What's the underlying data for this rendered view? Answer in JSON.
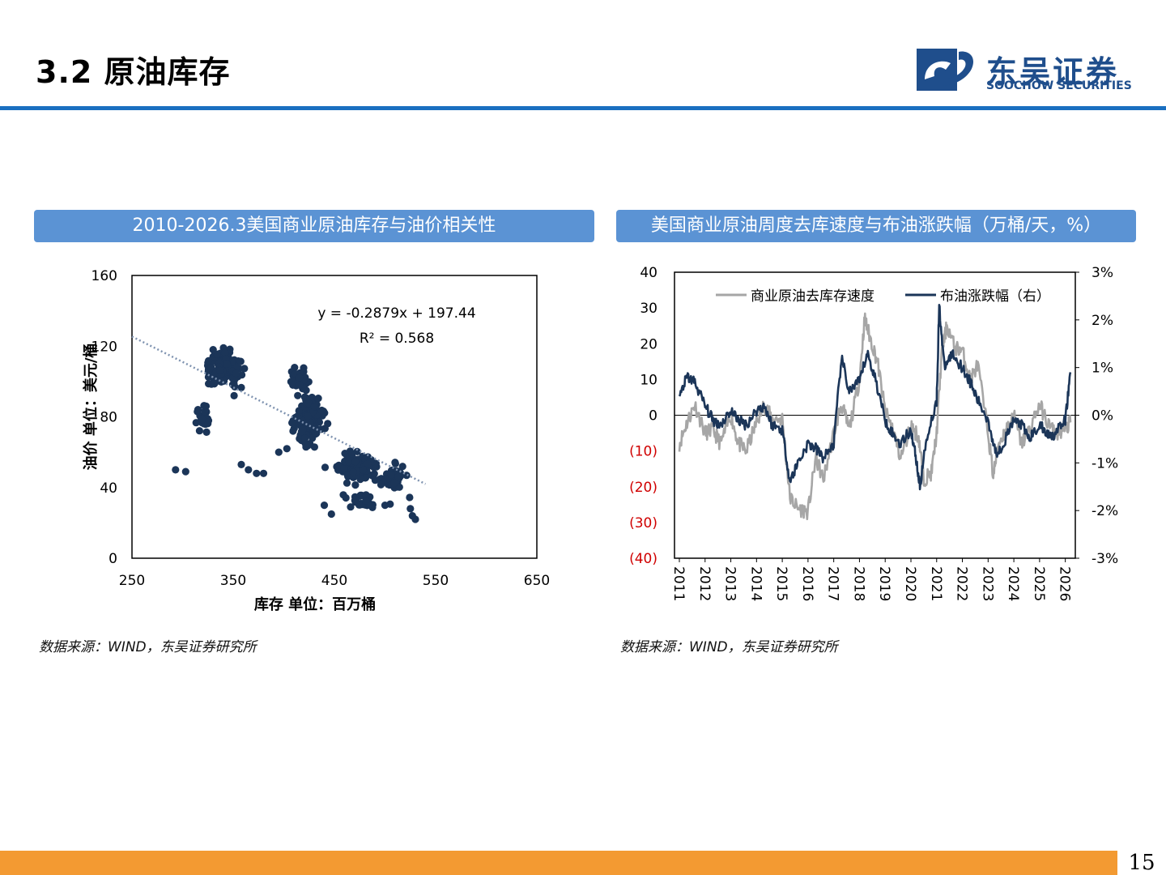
{
  "header": {
    "title": "3.2 原油库存"
  },
  "logo": {
    "cn": "东吴证券",
    "en": "SOOCHOW SECURITIES"
  },
  "left_panel": {
    "title": "2010-2026.3美国商业原油库存与油价相关性",
    "source": "数据来源：WIND，东吴证券研究所"
  },
  "right_panel": {
    "title": "美国商业原油周度去库速度与布油涨跌幅（万桶/天，%）",
    "source": "数据来源：WIND，东吴证券研究所"
  },
  "footer": {
    "page_number": "15"
  },
  "colors": {
    "accent": "#1a6fc0",
    "panel_title_bg": "#5b93d4",
    "footer": "#f39a32",
    "navy": "#1b3558",
    "gray": "#a6a6a6",
    "negative_label": "#d00000"
  },
  "chart_data": [
    {
      "type": "scatter",
      "title": "",
      "xlabel": "库存 单位：百万桶",
      "ylabel": "油价 单位：美元/桶",
      "xlim": [
        250,
        650
      ],
      "ylim": [
        0,
        160
      ],
      "x_ticks": [
        "250",
        "350",
        "450",
        "550",
        "650"
      ],
      "y_ticks": [
        "0",
        "40",
        "80",
        "120",
        "160"
      ],
      "equation": "y = -0.2879x + 197.44",
      "r_squared": "R² = 0.568",
      "trendline": {
        "slope": -0.2879,
        "intercept": 197.44
      },
      "clusters": [
        {
          "cx": 340,
          "cy": 108,
          "sx": 16,
          "sy": 9,
          "n": 130
        },
        {
          "cx": 320,
          "cy": 78,
          "sx": 10,
          "sy": 7,
          "n": 25
        },
        {
          "cx": 425,
          "cy": 78,
          "sx": 13,
          "sy": 12,
          "n": 190
        },
        {
          "cx": 415,
          "cy": 100,
          "sx": 8,
          "sy": 8,
          "n": 40
        },
        {
          "cx": 470,
          "cy": 52,
          "sx": 20,
          "sy": 8,
          "n": 130
        },
        {
          "cx": 510,
          "cy": 45,
          "sx": 12,
          "sy": 8,
          "n": 50
        },
        {
          "cx": 480,
          "cy": 33,
          "sx": 22,
          "sy": 6,
          "n": 25
        }
      ],
      "points": [
        [
          380,
          48
        ],
        [
          373,
          48
        ],
        [
          365,
          50
        ],
        [
          358,
          53
        ],
        [
          395,
          60
        ],
        [
          403,
          62
        ],
        [
          530,
          22
        ],
        [
          527,
          24
        ],
        [
          466,
          29
        ],
        [
          447,
          25
        ],
        [
          440,
          30
        ],
        [
          500,
          30
        ],
        [
          525,
          28
        ],
        [
          293,
          50
        ],
        [
          303,
          49
        ]
      ]
    },
    {
      "type": "line",
      "title": "",
      "x_ticks": [
        "2011",
        "2012",
        "2013",
        "2014",
        "2015",
        "2016",
        "2017",
        "2018",
        "2019",
        "2020",
        "2021",
        "2022",
        "2023",
        "2024",
        "2025",
        "2026"
      ],
      "xlim": [
        2011.0,
        2026.2
      ],
      "left_axis": {
        "ylim": [
          -40,
          40
        ],
        "ticks": [
          "40",
          "30",
          "20",
          "10",
          "0",
          "(10)",
          "(20)",
          "(30)",
          "(40)"
        ]
      },
      "right_axis": {
        "ylim": [
          -3,
          3
        ],
        "ticks": [
          "3%",
          "2%",
          "1%",
          "0%",
          "-1%",
          "-2%",
          "-3%"
        ]
      },
      "series": [
        {
          "name": "商业原油去库存速度",
          "axis": "left",
          "x": [
            2011.0,
            2011.3,
            2011.6,
            2012.0,
            2012.3,
            2012.6,
            2013.0,
            2013.3,
            2013.6,
            2014.0,
            2014.3,
            2014.6,
            2015.0,
            2015.3,
            2015.6,
            2016.0,
            2016.3,
            2016.6,
            2017.0,
            2017.3,
            2017.6,
            2018.0,
            2018.2,
            2018.4,
            2018.7,
            2019.0,
            2019.3,
            2019.6,
            2020.0,
            2020.3,
            2020.5,
            2020.8,
            2021.0,
            2021.2,
            2021.4,
            2021.7,
            2022.0,
            2022.3,
            2022.6,
            2023.0,
            2023.2,
            2023.4,
            2023.7,
            2024.0,
            2024.3,
            2024.6,
            2025.0,
            2025.3,
            2025.6,
            2026.0,
            2026.2
          ],
          "y": [
            -8,
            -2,
            3,
            -5,
            -4,
            -8,
            0,
            -8,
            -10,
            -2,
            3,
            -1,
            -1,
            -23,
            -26,
            -27,
            -12,
            -18,
            -5,
            3,
            -4,
            10,
            27,
            22,
            15,
            1,
            -4,
            -12,
            -3,
            -6,
            -18,
            -16,
            -5,
            18,
            25,
            19,
            18,
            10,
            14,
            -5,
            -17,
            -8,
            -4,
            0,
            -8,
            -4,
            3,
            -2,
            -5,
            -4,
            -2
          ]
        },
        {
          "name": "布油涨跌幅（右）",
          "axis": "right",
          "x": [
            2011.0,
            2011.3,
            2011.6,
            2012.0,
            2012.3,
            2012.6,
            2013.0,
            2013.3,
            2013.6,
            2014.0,
            2014.3,
            2014.6,
            2015.0,
            2015.3,
            2015.6,
            2016.0,
            2016.3,
            2016.6,
            2017.0,
            2017.3,
            2017.6,
            2018.0,
            2018.3,
            2018.6,
            2019.0,
            2019.3,
            2019.6,
            2020.0,
            2020.2,
            2020.35,
            2020.6,
            2021.0,
            2021.1,
            2021.3,
            2021.6,
            2022.0,
            2022.3,
            2022.6,
            2023.0,
            2023.3,
            2023.6,
            2024.0,
            2024.3,
            2024.6,
            2025.0,
            2025.3,
            2025.6,
            2026.0,
            2026.2
          ],
          "y": [
            0.4,
            0.8,
            0.7,
            0.2,
            -0.1,
            -0.2,
            0.1,
            -0.1,
            -0.2,
            0.1,
            0.2,
            -0.2,
            -0.3,
            -1.4,
            -1.0,
            -0.6,
            -0.7,
            -0.9,
            -0.6,
            1.2,
            0.5,
            0.7,
            1.3,
            0.8,
            -0.1,
            -0.4,
            -0.6,
            -0.3,
            -0.9,
            -1.5,
            -0.5,
            0.3,
            2.3,
            1.0,
            1.3,
            1.0,
            0.7,
            0.3,
            -0.1,
            -0.8,
            -0.6,
            -0.1,
            -0.2,
            -0.5,
            -0.2,
            -0.4,
            -0.4,
            -0.1,
            0.9
          ]
        }
      ]
    }
  ]
}
